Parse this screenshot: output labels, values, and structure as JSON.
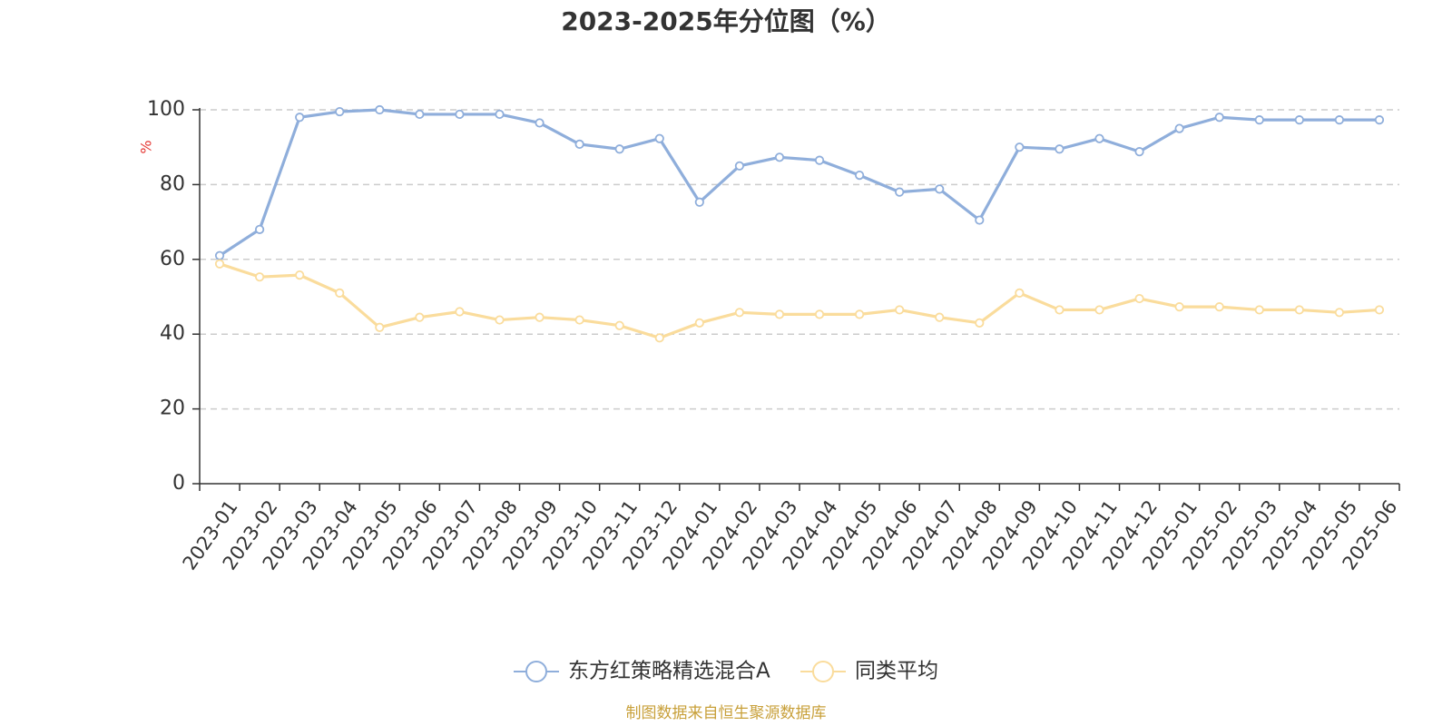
{
  "chart_data": {
    "type": "line",
    "title": "2023-2025年分位图（%）",
    "ylabel": "%",
    "ylim": [
      0,
      100
    ],
    "yticks": [
      "0",
      "20",
      "40",
      "60",
      "80",
      "100"
    ],
    "grid": true,
    "legend_position": "bottom-center",
    "categories": [
      "2023-01",
      "2023-02",
      "2023-03",
      "2023-04",
      "2023-05",
      "2023-06",
      "2023-07",
      "2023-08",
      "2023-09",
      "2023-10",
      "2023-11",
      "2023-12",
      "2024-01",
      "2024-02",
      "2024-03",
      "2024-04",
      "2024-05",
      "2024-06",
      "2024-07",
      "2024-08",
      "2024-09",
      "2024-10",
      "2024-11",
      "2024-12",
      "2025-01",
      "2025-02",
      "2025-03",
      "2025-04",
      "2025-05",
      "2025-06"
    ],
    "series": [
      {
        "name": "东方红策略精选混合A",
        "color": "#8FAEDB",
        "values": [
          61.0,
          68.0,
          98.0,
          99.5,
          100.0,
          98.8,
          98.8,
          98.8,
          96.5,
          90.8,
          89.5,
          92.3,
          75.3,
          85.0,
          87.3,
          86.5,
          82.5,
          78.0,
          78.8,
          70.5,
          90.0,
          89.5,
          92.3,
          88.8,
          95.0,
          98.0,
          97.3,
          97.3,
          97.3,
          97.3
        ]
      },
      {
        "name": "同类平均",
        "color": "#FADC9C",
        "values": [
          58.8,
          55.3,
          55.8,
          51.0,
          41.8,
          44.5,
          46.0,
          43.8,
          44.5,
          43.8,
          42.3,
          39.0,
          43.0,
          45.8,
          45.3,
          45.3,
          45.3,
          46.5,
          44.5,
          43.0,
          51.0,
          46.5,
          46.5,
          49.5,
          47.3,
          47.3,
          46.5,
          46.5,
          45.8,
          46.5
        ]
      }
    ]
  },
  "colors": {
    "unit_label": "#E53935",
    "source_text": "#C8A03A",
    "axis": "#333333",
    "grid": "#CCCCCC"
  },
  "footer": {
    "source": "制图数据来自恒生聚源数据库"
  }
}
